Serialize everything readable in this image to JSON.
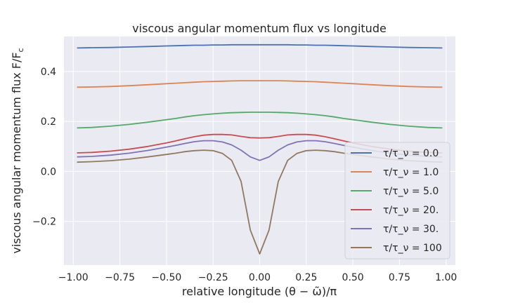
{
  "chart_data": {
    "type": "line",
    "title": "viscous angular momentum flux vs longitude",
    "xlabel": "relative longitude (θ − ω̃)/π",
    "ylabel": "viscous angular momentum flux F/F",
    "ylabel_subscript": "c",
    "xlim": [
      -1.05,
      1.05
    ],
    "ylim": [
      -0.375,
      0.54
    ],
    "xticks": [
      -1.0,
      -0.75,
      -0.5,
      -0.25,
      0.0,
      0.25,
      0.5,
      0.75,
      1.0
    ],
    "xtick_labels": [
      "−1.00",
      "−0.75",
      "−0.50",
      "−0.25",
      "0.00",
      "0.25",
      "0.50",
      "0.75",
      "1.00"
    ],
    "yticks": [
      -0.2,
      0.0,
      0.2,
      0.4
    ],
    "ytick_labels": [
      "−0.2",
      "0.0",
      "0.2",
      "0.4"
    ],
    "grid": true,
    "legend_position": "lower-right",
    "x": [
      -0.98,
      -0.9,
      -0.8,
      -0.7,
      -0.6,
      -0.5,
      -0.45,
      -0.4,
      -0.35,
      -0.3,
      -0.25,
      -0.2,
      -0.15,
      -0.1,
      -0.05,
      0.0,
      0.05,
      0.1,
      0.15,
      0.2,
      0.25,
      0.3,
      0.35,
      0.4,
      0.45,
      0.5,
      0.6,
      0.7,
      0.8,
      0.9,
      0.98
    ],
    "series": [
      {
        "name": "τ/τ_ν = 0.0",
        "color": "#4c72b0",
        "values": [
          0.494,
          0.495,
          0.496,
          0.498,
          0.5,
          0.502,
          0.503,
          0.504,
          0.505,
          0.505,
          0.506,
          0.506,
          0.507,
          0.507,
          0.507,
          0.507,
          0.507,
          0.507,
          0.507,
          0.506,
          0.506,
          0.505,
          0.505,
          0.504,
          0.503,
          0.502,
          0.5,
          0.498,
          0.496,
          0.495,
          0.494
        ]
      },
      {
        "name": "τ/τ_ν = 1.0",
        "color": "#dd8452",
        "values": [
          0.337,
          0.338,
          0.34,
          0.343,
          0.347,
          0.351,
          0.353,
          0.355,
          0.357,
          0.359,
          0.36,
          0.361,
          0.362,
          0.363,
          0.363,
          0.363,
          0.363,
          0.363,
          0.362,
          0.361,
          0.36,
          0.359,
          0.357,
          0.355,
          0.353,
          0.351,
          0.347,
          0.343,
          0.34,
          0.338,
          0.337
        ]
      },
      {
        "name": "τ/τ_ν = 5.0",
        "color": "#55a868",
        "values": [
          0.174,
          0.176,
          0.181,
          0.188,
          0.197,
          0.207,
          0.212,
          0.218,
          0.223,
          0.227,
          0.23,
          0.233,
          0.235,
          0.236,
          0.237,
          0.237,
          0.237,
          0.236,
          0.235,
          0.233,
          0.23,
          0.227,
          0.223,
          0.218,
          0.212,
          0.207,
          0.197,
          0.188,
          0.181,
          0.176,
          0.174
        ]
      },
      {
        "name": "τ/τ_ν = 20.",
        "color": "#c44e52",
        "values": [
          0.074,
          0.076,
          0.081,
          0.089,
          0.1,
          0.114,
          0.122,
          0.131,
          0.139,
          0.145,
          0.148,
          0.148,
          0.146,
          0.14,
          0.135,
          0.134,
          0.135,
          0.14,
          0.146,
          0.148,
          0.148,
          0.145,
          0.139,
          0.131,
          0.122,
          0.114,
          0.1,
          0.089,
          0.081,
          0.076,
          0.074
        ]
      },
      {
        "name": "τ/τ_ν = 30.",
        "color": "#8172b3",
        "values": [
          0.058,
          0.06,
          0.065,
          0.073,
          0.084,
          0.097,
          0.104,
          0.112,
          0.119,
          0.123,
          0.123,
          0.118,
          0.106,
          0.085,
          0.058,
          0.044,
          0.058,
          0.085,
          0.106,
          0.118,
          0.123,
          0.123,
          0.119,
          0.112,
          0.104,
          0.097,
          0.084,
          0.073,
          0.065,
          0.06,
          0.058
        ]
      },
      {
        "name": "τ/τ_ν = 100",
        "color": "#937860",
        "values": [
          0.037,
          0.039,
          0.043,
          0.049,
          0.058,
          0.068,
          0.073,
          0.079,
          0.083,
          0.085,
          0.083,
          0.072,
          0.044,
          -0.04,
          -0.235,
          -0.33,
          -0.235,
          -0.04,
          0.044,
          0.072,
          0.083,
          0.085,
          0.083,
          0.079,
          0.073,
          0.068,
          0.058,
          0.049,
          0.043,
          0.039,
          0.037
        ]
      }
    ]
  }
}
